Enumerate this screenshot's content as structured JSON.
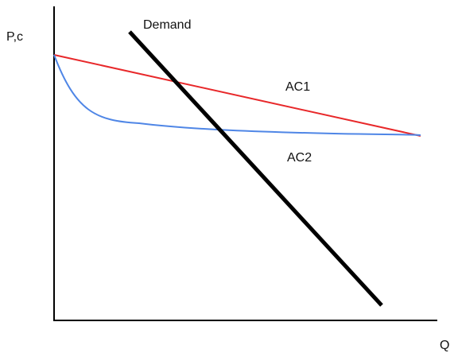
{
  "diagram": {
    "axes": {
      "y_label": "P,c",
      "x_label": "Q"
    },
    "curves": {
      "demand": {
        "label": "Demand",
        "color": "#000000"
      },
      "ac1": {
        "label": "AC1",
        "color": "#e8282a"
      },
      "ac2": {
        "label": "AC2",
        "color": "#4f86e6"
      }
    }
  }
}
